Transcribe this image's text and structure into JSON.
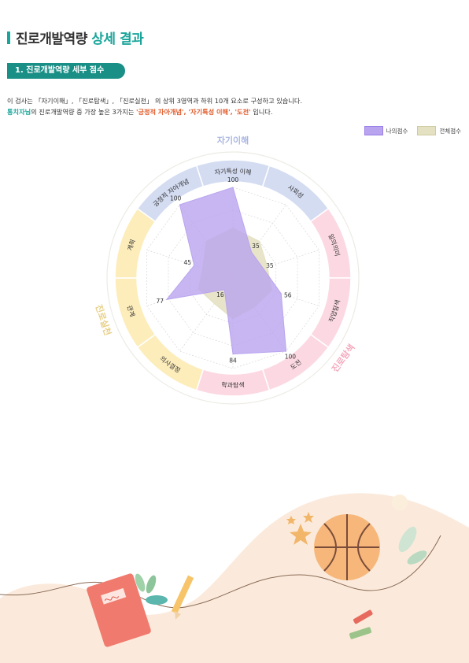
{
  "header": {
    "title_main": "진로개발역량",
    "title_accent": "상세 결과"
  },
  "section": {
    "label": "1. 진로개발역량 세부 점수"
  },
  "description": {
    "line1": "이 검사는 「자기이해」, 「진로탐색」, 「진로실천」 의 상위 3영역과 하위 10개 요소로 구성하고 있습니다.",
    "name": "통치자님",
    "line2_mid": "의 진로개발역량 중 가장 높은 3가지는",
    "highlight": "'긍정적 자아개념', '자기특성 이해', '도전'",
    "line2_end": "입니다."
  },
  "chart_data": {
    "type": "radar",
    "categories": [
      "자기특성 이해",
      "사회성",
      "일의의미",
      "직업탐색",
      "도전",
      "학과탐색",
      "의사결정",
      "관계",
      "계획",
      "긍정적 자아개념"
    ],
    "domains": [
      {
        "name": "자기이해",
        "categories": [
          "긍정적 자아개념",
          "자기특성 이해",
          "사회성"
        ],
        "color": "#d4dcf2",
        "label_color": "#aab6e0"
      },
      {
        "name": "진로탐색",
        "categories": [
          "일의의미",
          "직업탐색",
          "도전",
          "학과탐색"
        ],
        "color": "#fcd9e2",
        "label_color": "#f4a9bd"
      },
      {
        "name": "진로실천",
        "categories": [
          "의사결정",
          "관계",
          "계획"
        ],
        "color": "#fdedbb",
        "label_color": "#e8cf86"
      }
    ],
    "series": [
      {
        "name": "나의점수",
        "values": [
          100,
          35,
          35,
          56,
          100,
          84,
          16,
          77,
          45,
          100
        ],
        "color": "#b9a4ef"
      },
      {
        "name": "전체점수",
        "values": [
          55,
          50,
          40,
          45,
          40,
          45,
          35,
          40,
          35,
          50
        ],
        "color": "#e4e1c3"
      }
    ],
    "data_labels": [
      "100",
      "35",
      "35",
      "56",
      "100",
      "84",
      "16",
      "77",
      "45",
      "100"
    ],
    "ylim": [
      0,
      100
    ]
  }
}
